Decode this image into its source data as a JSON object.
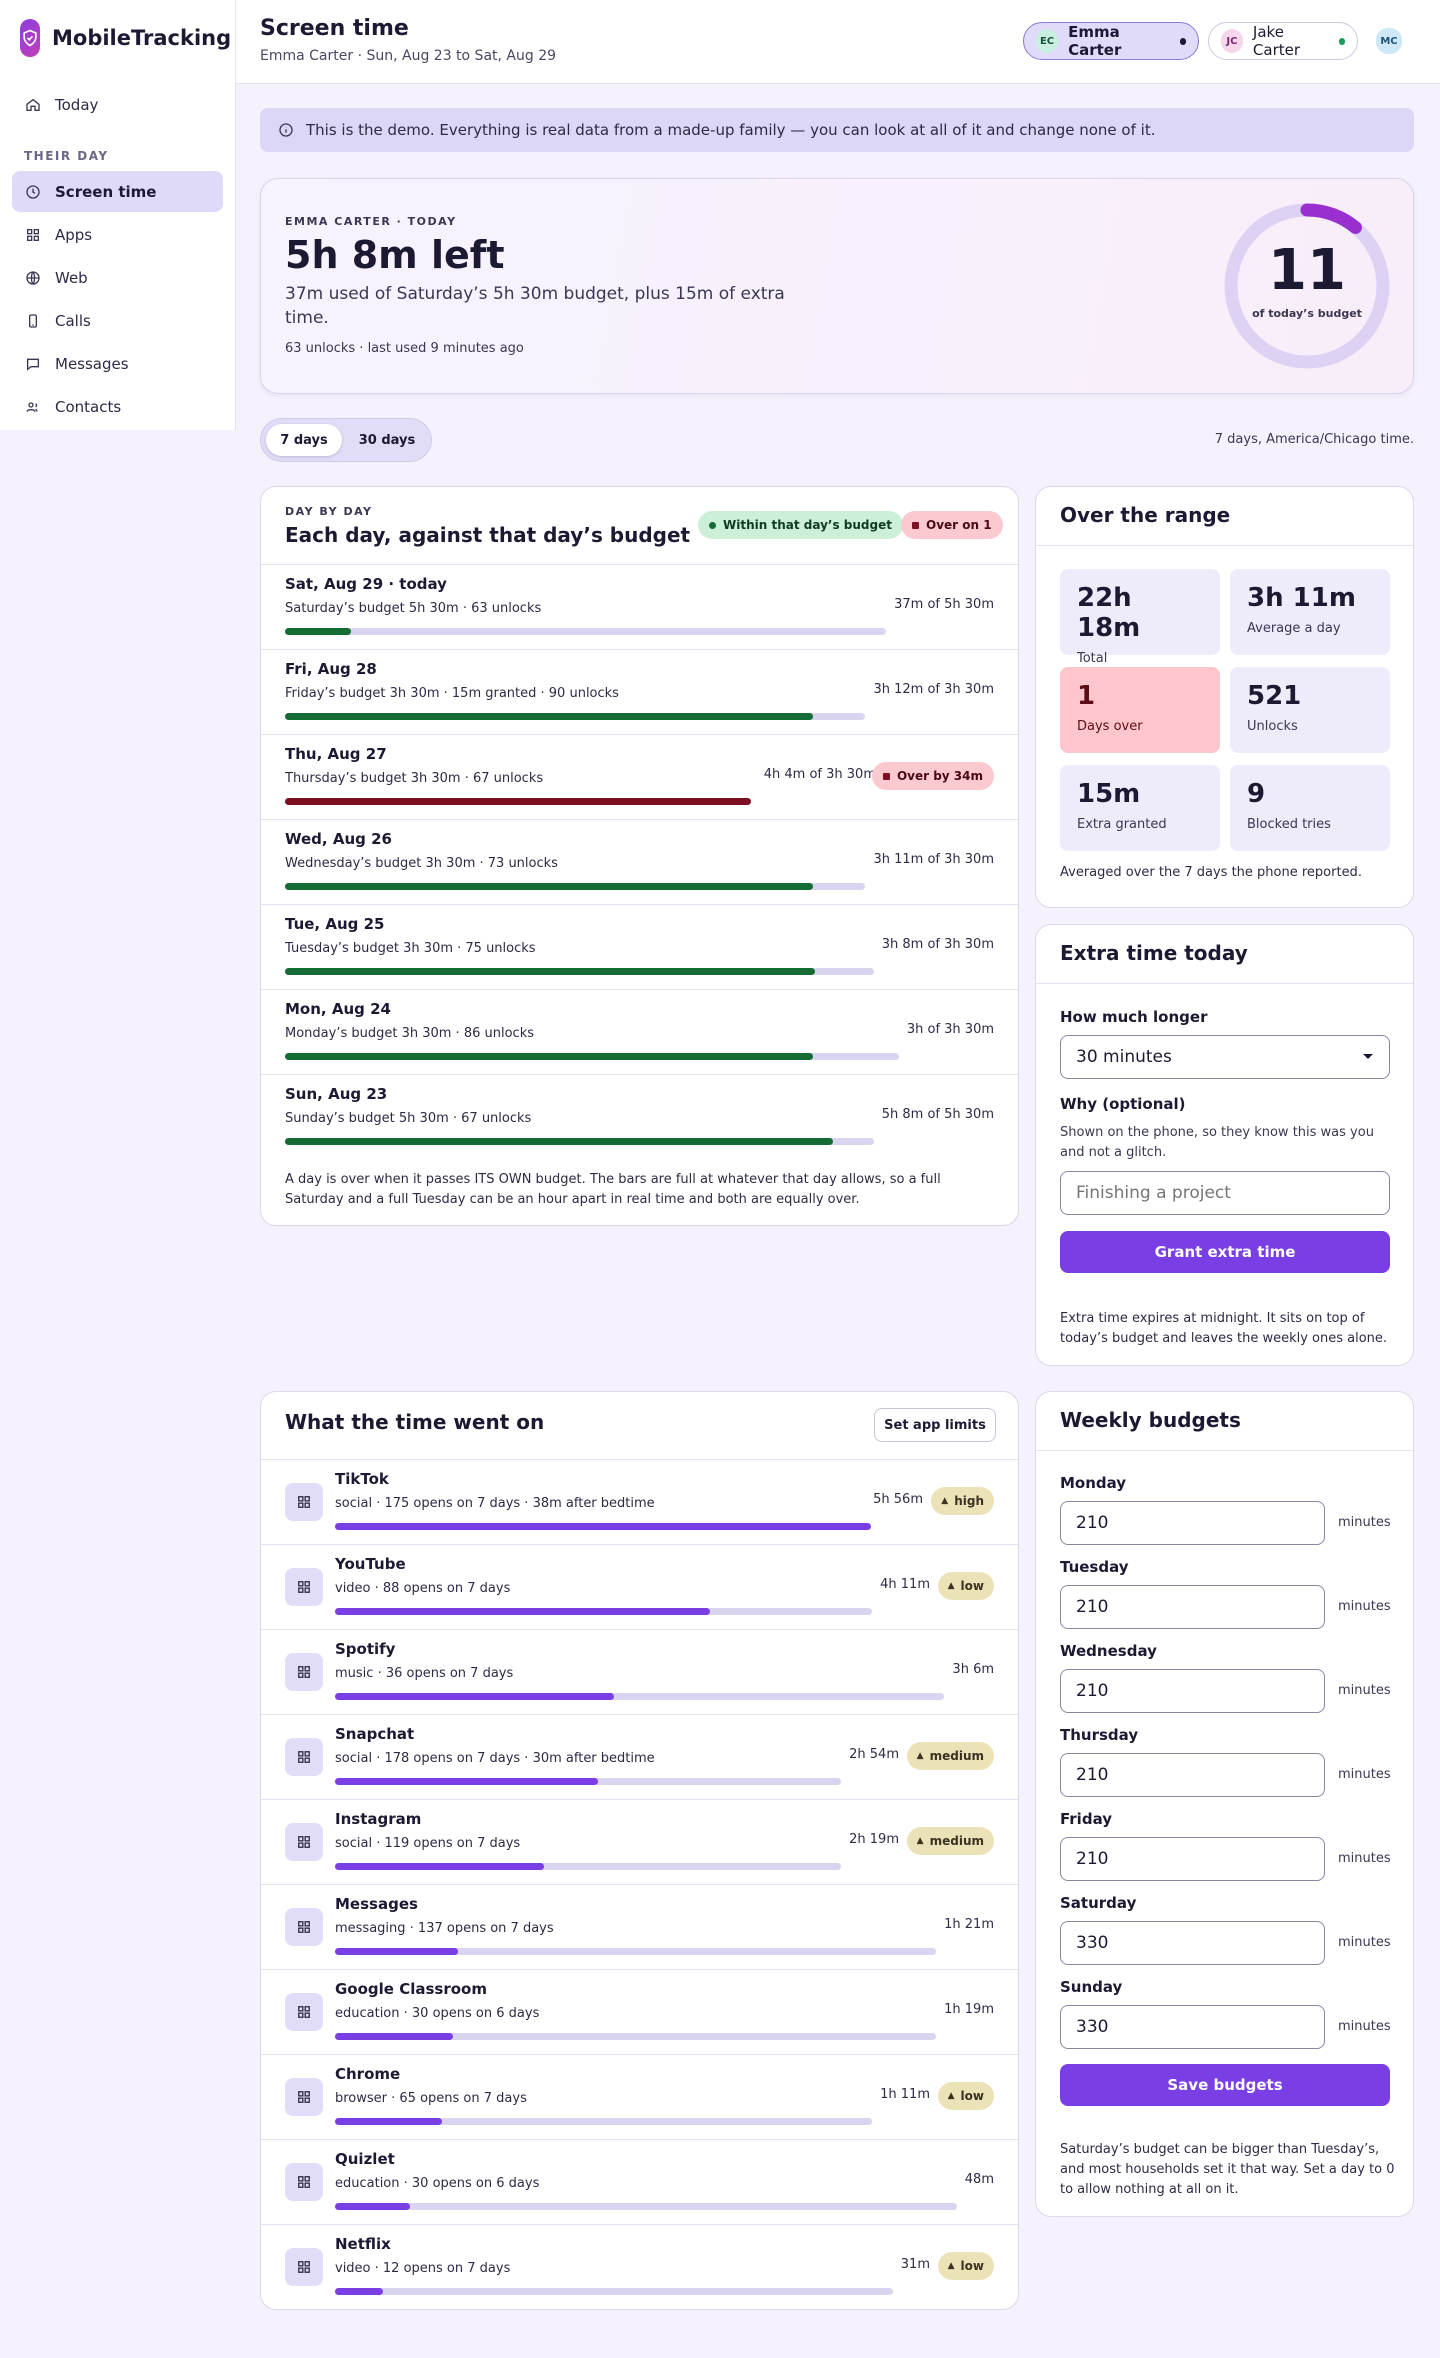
{
  "app": {
    "name": "MobileTracking"
  },
  "sidebar": {
    "today": "Today",
    "section_label": "THEIR DAY",
    "items": [
      {
        "label": "Screen time",
        "icon": "clock-icon",
        "active": true
      },
      {
        "label": "Apps",
        "icon": "grid-icon",
        "active": false
      },
      {
        "label": "Web",
        "icon": "globe-icon",
        "active": false
      },
      {
        "label": "Calls",
        "icon": "phone-icon",
        "active": false
      },
      {
        "label": "Messages",
        "icon": "message-icon",
        "active": false
      },
      {
        "label": "Contacts",
        "icon": "contacts-icon",
        "active": false
      }
    ]
  },
  "header": {
    "title": "Screen time",
    "subtitle": "Emma Carter · Sun, Aug 23 to Sat, Aug 29",
    "kids": [
      {
        "initials": "EC",
        "name": "Emma Carter",
        "active": true
      },
      {
        "initials": "JC",
        "name": "Jake Carter",
        "active": false
      },
      {
        "initials": "MC",
        "name": "",
        "active": false
      }
    ]
  },
  "banner": "This is the demo. Everything is real data from a made-up family — you can look at all of it and change none of it.",
  "hero": {
    "eyebrow": "EMMA CARTER · TODAY",
    "headline": "5h 8m left",
    "detail": "37m used of Saturday’s 5h 30m budget, plus 15m of extra time.",
    "meta": "63 unlocks · last used 9 minutes ago",
    "ring_value": "11",
    "ring_label": "of today’s budget",
    "ring_percent": 11
  },
  "range": {
    "options": [
      "7 days",
      "30 days"
    ],
    "selected": "7 days",
    "note": "7 days, America/Chicago time."
  },
  "daybyday": {
    "eyebrow": "DAY BY DAY",
    "title": "Each day, against that day’s budget",
    "legend_ok": "Within that day’s budget",
    "legend_over": "Over on 1",
    "days": [
      {
        "title": "Sat, Aug 29 · today",
        "sub": "Saturday’s budget 5h 30m · 63 unlocks",
        "value": "37m of 5h 30m",
        "fraction": 0.11,
        "over": false,
        "over_label": ""
      },
      {
        "title": "Fri, Aug 28",
        "sub": "Friday’s budget 3h 30m · 15m granted · 90 unlocks",
        "value": "3h 12m of 3h 30m",
        "fraction": 0.91,
        "over": false,
        "over_label": ""
      },
      {
        "title": "Thu, Aug 27",
        "sub": "Thursday’s budget 3h 30m · 67 unlocks",
        "value": "4h 4m of 3h 30m",
        "fraction": 1.0,
        "over": true,
        "over_label": "Over by 34m"
      },
      {
        "title": "Wed, Aug 26",
        "sub": "Wednesday’s budget 3h 30m · 73 unlocks",
        "value": "3h 11m of 3h 30m",
        "fraction": 0.91,
        "over": false,
        "over_label": ""
      },
      {
        "title": "Tue, Aug 25",
        "sub": "Tuesday’s budget 3h 30m · 75 unlocks",
        "value": "3h 8m of 3h 30m",
        "fraction": 0.9,
        "over": false,
        "over_label": ""
      },
      {
        "title": "Mon, Aug 24",
        "sub": "Monday’s budget 3h 30m · 86 unlocks",
        "value": "3h of 3h 30m",
        "fraction": 0.86,
        "over": false,
        "over_label": ""
      },
      {
        "title": "Sun, Aug 23",
        "sub": "Sunday’s budget 5h 30m · 67 unlocks",
        "value": "5h 8m of 5h 30m",
        "fraction": 0.93,
        "over": false,
        "over_label": ""
      }
    ],
    "footnote": "A day is over when it passes ITS OWN budget. The bars are full at whatever that day allows, so a full Saturday and a full Tuesday can be an hour apart in real time and both are equally over."
  },
  "over_range": {
    "title": "Over the range",
    "stats": [
      {
        "value": "22h 18m",
        "label": "Total",
        "alert": false
      },
      {
        "value": "3h 11m",
        "label": "Average a day",
        "alert": false
      },
      {
        "value": "1",
        "label": "Days over",
        "alert": true
      },
      {
        "value": "521",
        "label": "Unlocks",
        "alert": false
      },
      {
        "value": "15m",
        "label": "Extra granted",
        "alert": false
      },
      {
        "value": "9",
        "label": "Blocked tries",
        "alert": false
      }
    ],
    "note": "Averaged over the 7 days the phone reported."
  },
  "extra_time": {
    "title": "Extra time today",
    "how_long_label": "How much longer",
    "how_long_value": "30 minutes",
    "why_label": "Why (optional)",
    "why_help": "Shown on the phone, so they know this was you and not a glitch.",
    "why_placeholder": "Finishing a project",
    "button": "Grant extra time",
    "note": "Extra time expires at midnight. It sits on top of today’s budget and leaves the weekly ones alone."
  },
  "apps": {
    "title": "What the time went on",
    "button": "Set app limits",
    "items": [
      {
        "name": "TikTok",
        "sub": "social · 175 opens on 7 days · 38m after bedtime",
        "time": "5h 56m",
        "risk": "high",
        "fraction": 1.0
      },
      {
        "name": "YouTube",
        "sub": "video · 88 opens on 7 days",
        "time": "4h 11m",
        "risk": "low",
        "fraction": 0.7
      },
      {
        "name": "Spotify",
        "sub": "music · 36 opens on 7 days",
        "time": "3h 6m",
        "risk": "",
        "fraction": 0.52
      },
      {
        "name": "Snapchat",
        "sub": "social · 178 opens on 7 days · 30m after bedtime",
        "time": "2h 54m",
        "risk": "medium",
        "fraction": 0.49
      },
      {
        "name": "Instagram",
        "sub": "social · 119 opens on 7 days",
        "time": "2h 19m",
        "risk": "medium",
        "fraction": 0.39
      },
      {
        "name": "Messages",
        "sub": "messaging · 137 opens on 7 days",
        "time": "1h 21m",
        "risk": "",
        "fraction": 0.23
      },
      {
        "name": "Google Classroom",
        "sub": "education · 30 opens on 6 days",
        "time": "1h 19m",
        "risk": "",
        "fraction": 0.22
      },
      {
        "name": "Chrome",
        "sub": "browser · 65 opens on 7 days",
        "time": "1h 11m",
        "risk": "low",
        "fraction": 0.2
      },
      {
        "name": "Quizlet",
        "sub": "education · 30 opens on 6 days",
        "time": "48m",
        "risk": "",
        "fraction": 0.14
      },
      {
        "name": "Netflix",
        "sub": "video · 12 opens on 7 days",
        "time": "31m",
        "risk": "low",
        "fraction": 0.09
      }
    ]
  },
  "weekly": {
    "title": "Weekly budgets",
    "unit": "minutes",
    "days": [
      {
        "label": "Monday",
        "value": "210"
      },
      {
        "label": "Tuesday",
        "value": "210"
      },
      {
        "label": "Wednesday",
        "value": "210"
      },
      {
        "label": "Thursday",
        "value": "210"
      },
      {
        "label": "Friday",
        "value": "210"
      },
      {
        "label": "Saturday",
        "value": "330"
      },
      {
        "label": "Sunday",
        "value": "330"
      }
    ],
    "button": "Save budgets",
    "note": "Saturday’s budget can be bigger than Tuesday’s, and most households set it that way. Set a day to 0 to allow nothing at all on it."
  },
  "colors": {
    "accent": "#7a3fe4",
    "ok": "#146b34",
    "over": "#7a1022",
    "track": "#d9d4ef",
    "app_bar": "#7a3fe4"
  }
}
